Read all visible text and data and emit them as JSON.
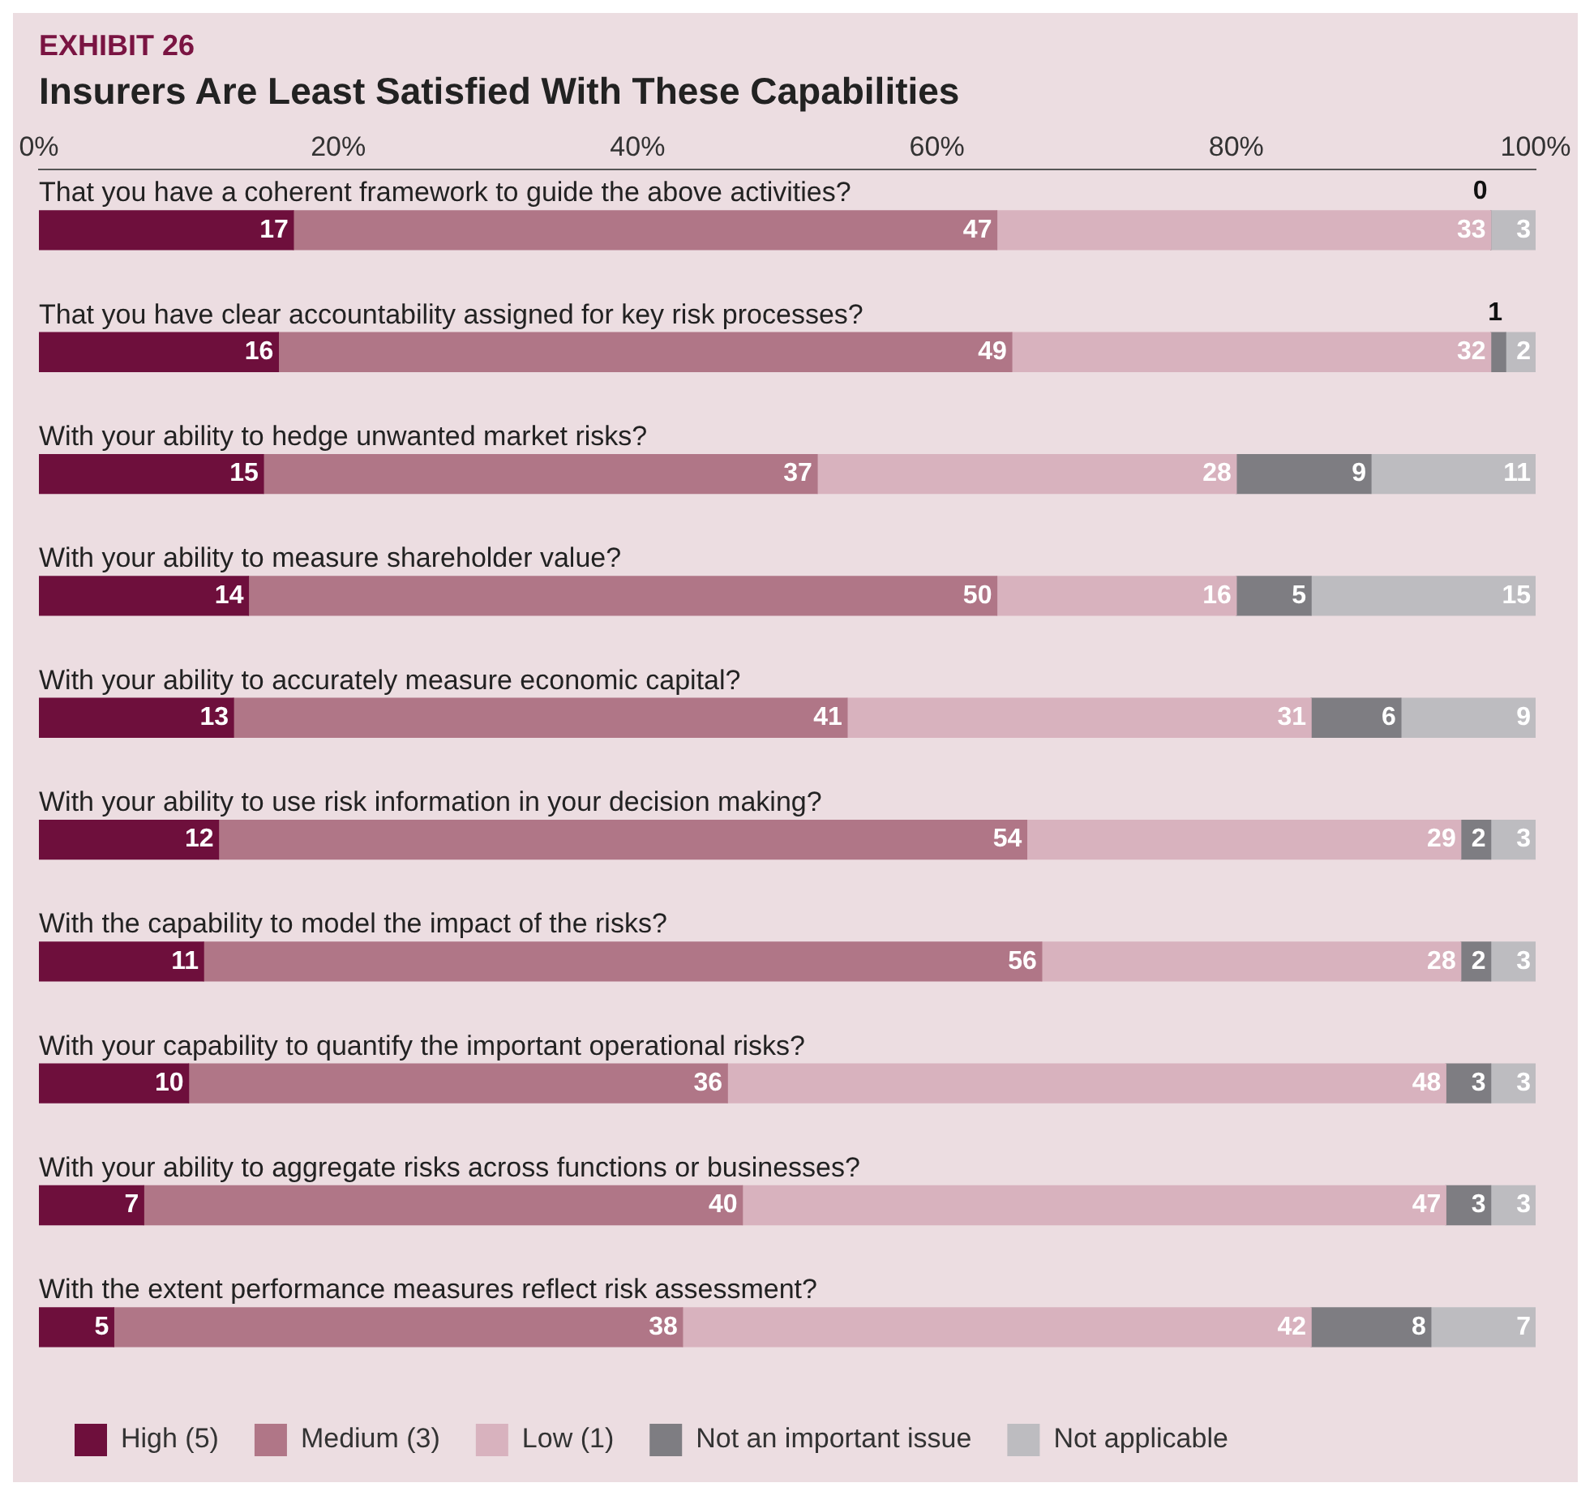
{
  "chart_data": {
    "type": "bar",
    "orientation": "horizontal",
    "stacked": true,
    "title": "EXHIBIT 26",
    "subtitle": "Insurers Are Least Satisfied With These Capabilities",
    "categories": [
      "That you have a coherent framework to guide the above activities?",
      "That you have clear accountability assigned for key risk processes?",
      "With your ability to hedge unwanted market risks?",
      "With your ability to measure shareholder value?",
      "With your ability to accurately measure economic capital?",
      "With your ability to use risk information in your decision making?",
      "With the capability to model the impact of the risks?",
      "With your capability to quantify the important operational risks?",
      "With your ability to aggregate risks across functions or businesses?",
      "With the extent performance measures reflect risk assessment?"
    ],
    "series": [
      {
        "name": "High (5)",
        "color": "#6e0f3c",
        "values": [
          17,
          16,
          15,
          14,
          13,
          12,
          11,
          10,
          7,
          5
        ]
      },
      {
        "name": "Medium (3)",
        "color": "#b07687",
        "values": [
          47,
          49,
          37,
          50,
          41,
          54,
          56,
          36,
          40,
          38
        ]
      },
      {
        "name": "Low (1)",
        "color": "#d8b2be",
        "values": [
          33,
          32,
          28,
          16,
          31,
          29,
          28,
          48,
          47,
          42
        ]
      },
      {
        "name": "Not an important issue",
        "color": "#7e7d82",
        "values": [
          0,
          1,
          9,
          5,
          6,
          2,
          2,
          3,
          3,
          8
        ]
      },
      {
        "name": "Not applicable",
        "color": "#bdbcc0",
        "values": [
          3,
          2,
          11,
          15,
          9,
          3,
          3,
          3,
          3,
          7
        ]
      }
    ],
    "xlim": [
      0,
      100
    ],
    "xticks": [
      {
        "value": 0,
        "label": "0%"
      },
      {
        "value": 20,
        "label": "20%"
      },
      {
        "value": 40,
        "label": "40%"
      },
      {
        "value": 60,
        "label": "60%"
      },
      {
        "value": 80,
        "label": "80%"
      },
      {
        "value": 100,
        "label": "100%"
      }
    ],
    "grid": false,
    "legend": "bottom left",
    "data_labels": true
  }
}
